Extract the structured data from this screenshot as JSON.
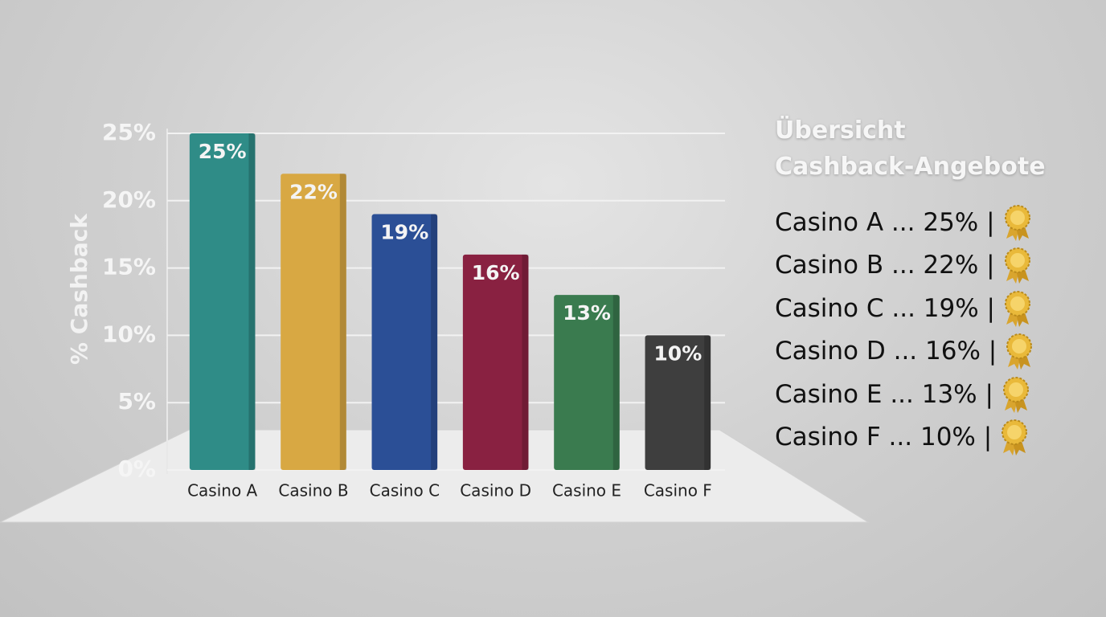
{
  "chart_data": {
    "type": "bar",
    "y_label": "% Cashback",
    "categories": [
      "Casino A",
      "Casino B",
      "Casino C",
      "Casino D",
      "Casino E",
      "Casino F"
    ],
    "values": [
      25,
      22,
      19,
      16,
      13,
      10
    ],
    "value_labels": [
      "25%",
      "22%",
      "19%",
      "16%",
      "13%",
      "10%"
    ],
    "colors": [
      "#2f8c87",
      "#d8a843",
      "#2b4f96",
      "#892141",
      "#3a7b4f",
      "#3e3e3e"
    ],
    "ylim": [
      0,
      25
    ],
    "yticks": [
      {
        "value": 0,
        "label": "0%"
      },
      {
        "value": 5,
        "label": "5%"
      },
      {
        "value": 10,
        "label": "10%"
      },
      {
        "value": 15,
        "label": "15%"
      },
      {
        "value": 20,
        "label": "20%"
      },
      {
        "value": 25,
        "label": "25%"
      }
    ],
    "grid": true
  },
  "summary": {
    "title": "Übersicht Cashback-Angebote",
    "items": [
      "Casino A ... 25% |",
      "Casino B ... 22% |",
      "Casino C ... 19% |",
      "Casino D ... 16% |",
      "Casino E ... 13% |",
      "Casino F ... 10% |"
    ]
  }
}
